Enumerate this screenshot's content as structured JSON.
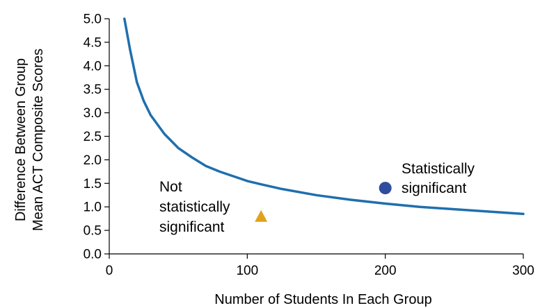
{
  "chart_data": {
    "type": "scatter",
    "xlabel": "Number of Students In Each Group",
    "ylabel_lines": [
      "Difference Between Group",
      "Mean ACT Composite Scores"
    ],
    "xlim": [
      0,
      300
    ],
    "ylim": [
      0,
      5
    ],
    "x_ticks": [
      "0",
      "100",
      "200",
      "300"
    ],
    "y_ticks": [
      "0.0",
      "0.5",
      "1.0",
      "1.5",
      "2.0",
      "2.5",
      "3.0",
      "3.5",
      "4.0",
      "4.5",
      "5.0"
    ],
    "grid": false,
    "curve": {
      "color": "#1f6fae",
      "points": [
        [
          11,
          5.0
        ],
        [
          15,
          4.35
        ],
        [
          20,
          3.65
        ],
        [
          25,
          3.25
        ],
        [
          30,
          2.95
        ],
        [
          40,
          2.55
        ],
        [
          50,
          2.25
        ],
        [
          60,
          2.05
        ],
        [
          70,
          1.87
        ],
        [
          80,
          1.75
        ],
        [
          90,
          1.65
        ],
        [
          100,
          1.55
        ],
        [
          110,
          1.48
        ],
        [
          125,
          1.38
        ],
        [
          150,
          1.25
        ],
        [
          175,
          1.15
        ],
        [
          200,
          1.07
        ],
        [
          225,
          1.0
        ],
        [
          250,
          0.95
        ],
        [
          275,
          0.9
        ],
        [
          300,
          0.85
        ]
      ]
    },
    "points": [
      {
        "x": 200,
        "y": 1.4,
        "shape": "circle",
        "color": "#2e4d9c",
        "label_lines": [
          "Statistically",
          "significant"
        ]
      },
      {
        "x": 110,
        "y": 0.8,
        "shape": "triangle",
        "color": "#e0a21b",
        "label_lines": [
          "Not",
          "statistically",
          "significant"
        ]
      }
    ]
  }
}
